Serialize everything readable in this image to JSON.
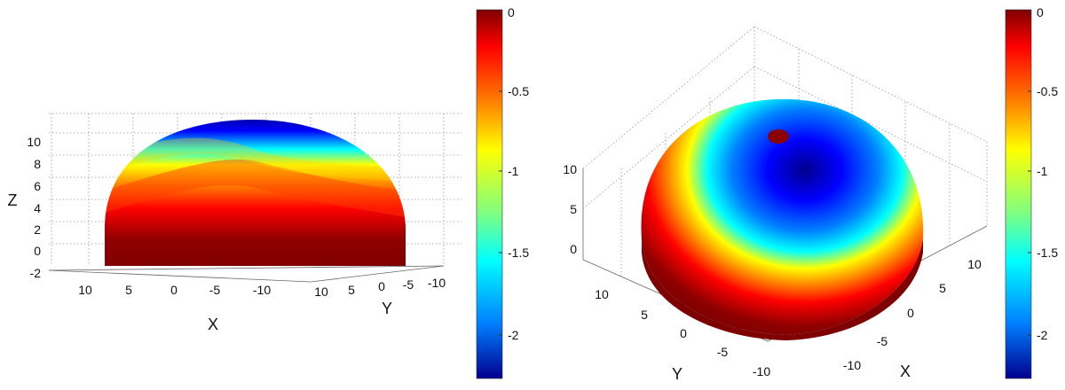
{
  "chart_data": [
    {
      "type": "surface",
      "view": "side",
      "title": "",
      "xlabel": "X",
      "ylabel": "Y",
      "zlabel": "Z",
      "x_ticks": [
        "10",
        "5",
        "0",
        "-5",
        "-10"
      ],
      "y_ticks": [
        "10",
        "5",
        "0",
        "-5",
        "-10"
      ],
      "z_ticks": [
        "10",
        "8",
        "6",
        "4",
        "2",
        "0",
        "-2"
      ],
      "zlim": [
        -2,
        11
      ],
      "colorbar": {
        "ticks": [
          "0",
          "-0.5",
          "-1",
          "-1.5",
          "-2"
        ],
        "range": [
          -2.2,
          0
        ],
        "colormap": "jet"
      },
      "shape": "hemisphere",
      "radius": 11,
      "value_at_base": 0,
      "value_at_top": -2.1
    },
    {
      "type": "surface",
      "view": "top-oblique",
      "title": "",
      "xlabel": "X",
      "ylabel": "Y",
      "zlabel": "",
      "x_ticks": [
        "10",
        "5",
        "0",
        "-5",
        "-10"
      ],
      "y_ticks": [
        "10",
        "5",
        "0",
        "-5",
        "-10"
      ],
      "z_ticks": [
        "10",
        "5",
        "0"
      ],
      "zlim": [
        0,
        11
      ],
      "colorbar": {
        "ticks": [
          "0",
          "-0.5",
          "-1",
          "-1.5",
          "-2"
        ],
        "range": [
          -2.2,
          0
        ],
        "colormap": "jet"
      },
      "shape": "hemisphere",
      "radius": 11,
      "value_at_base": 0,
      "value_at_top": -2.1,
      "marker": {
        "description": "small dark-red spot near the top",
        "value": 0
      }
    }
  ],
  "colors": {
    "jet": [
      "#00008f",
      "#0000ff",
      "#00ffff",
      "#ffff00",
      "#ff7f00",
      "#ff0000",
      "#800000"
    ],
    "base": "#7f0000",
    "marker": "#8b0000"
  }
}
